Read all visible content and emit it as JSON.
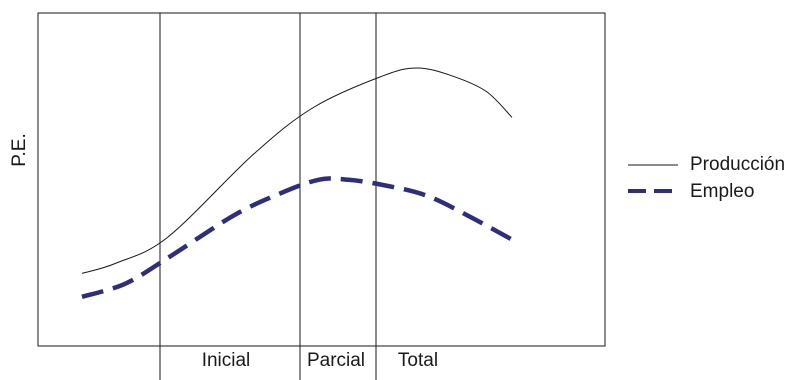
{
  "chart_data": {
    "type": "line",
    "title": "",
    "xlabel": "",
    "ylabel": "P.E.",
    "categories": [
      "Inicial",
      "Parcial",
      "Total"
    ],
    "grid": false,
    "legend_position": "right",
    "series": [
      {
        "name": "Producción",
        "style": "solid-thin",
        "color": "#1a1a1a",
        "points": [
          [
            0.0,
            0.16
          ],
          [
            0.08,
            0.2
          ],
          [
            0.2,
            0.3
          ],
          [
            0.4,
            0.62
          ],
          [
            0.54,
            0.8
          ],
          [
            0.7,
            0.92
          ],
          [
            0.78,
            0.95
          ],
          [
            0.86,
            0.92
          ],
          [
            0.94,
            0.86
          ],
          [
            1.0,
            0.76
          ]
        ]
      },
      {
        "name": "Empleo",
        "style": "dashed-thick",
        "color": "#2e2e7a",
        "points": [
          [
            0.0,
            0.07
          ],
          [
            0.1,
            0.12
          ],
          [
            0.2,
            0.22
          ],
          [
            0.35,
            0.38
          ],
          [
            0.45,
            0.46
          ],
          [
            0.55,
            0.52
          ],
          [
            0.62,
            0.52
          ],
          [
            0.7,
            0.5
          ],
          [
            0.8,
            0.46
          ],
          [
            0.9,
            0.38
          ],
          [
            1.0,
            0.29
          ]
        ]
      }
    ]
  }
}
